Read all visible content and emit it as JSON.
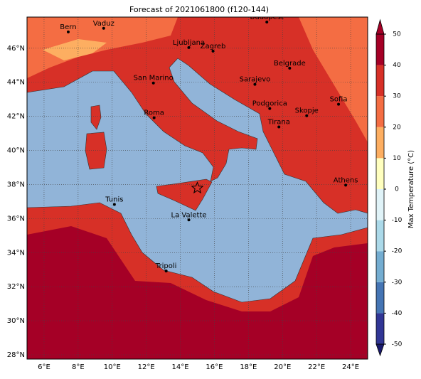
{
  "title": "Forecast of 2021061800 (f120-144)",
  "map": {
    "lonlim": [
      5,
      25
    ],
    "latlim": [
      27.75,
      47.83
    ],
    "grid": true,
    "lonticks": [
      {
        "value": 6,
        "label": "6°E"
      },
      {
        "value": 8,
        "label": "8°E"
      },
      {
        "value": 10,
        "label": "10°E"
      },
      {
        "value": 12,
        "label": "12°E"
      },
      {
        "value": 14,
        "label": "14°E"
      },
      {
        "value": 16,
        "label": "16°E"
      },
      {
        "value": 18,
        "label": "18°E"
      },
      {
        "value": 20,
        "label": "20°E"
      },
      {
        "value": 22,
        "label": "22°E"
      },
      {
        "value": 24,
        "label": "24°E"
      }
    ],
    "latticks": [
      {
        "value": 28,
        "label": "28°N"
      },
      {
        "value": 30,
        "label": "30°N"
      },
      {
        "value": 32,
        "label": "32°N"
      },
      {
        "value": 34,
        "label": "34°N"
      },
      {
        "value": 36,
        "label": "36°N"
      },
      {
        "value": 38,
        "label": "38°N"
      },
      {
        "value": 40,
        "label": "40°N"
      },
      {
        "value": 42,
        "label": "42°N"
      },
      {
        "value": 44,
        "label": "44°N"
      },
      {
        "value": 46,
        "label": "46°N"
      }
    ],
    "cities": [
      {
        "name": "Bern",
        "lon": 7.42,
        "lat": 46.96
      },
      {
        "name": "Vaduz",
        "lon": 9.5,
        "lat": 47.17
      },
      {
        "name": "Budapest",
        "lon": 19.08,
        "lat": 47.54
      },
      {
        "name": "Ljubljana",
        "lon": 14.5,
        "lat": 46.04
      },
      {
        "name": "Zagreb",
        "lon": 15.92,
        "lat": 45.83
      },
      {
        "name": "Belgrade",
        "lon": 20.42,
        "lat": 44.83
      },
      {
        "name": "San Marino",
        "lon": 12.42,
        "lat": 43.96
      },
      {
        "name": "Sarajevo",
        "lon": 18.38,
        "lat": 43.88
      },
      {
        "name": "Sofia",
        "lon": 23.29,
        "lat": 42.71
      },
      {
        "name": "Podgorica",
        "lon": 19.25,
        "lat": 42.46
      },
      {
        "name": "Skopje",
        "lon": 21.42,
        "lat": 42.04
      },
      {
        "name": "Roma",
        "lon": 12.46,
        "lat": 41.92
      },
      {
        "name": "Tirana",
        "lon": 19.79,
        "lat": 41.38
      },
      {
        "name": "Athens",
        "lon": 23.71,
        "lat": 37.96
      },
      {
        "name": "Tunis",
        "lon": 10.13,
        "lat": 36.83
      },
      {
        "name": "La Valette",
        "lon": 14.5,
        "lat": 35.92
      },
      {
        "name": "Tripoli",
        "lon": 13.17,
        "lat": 32.92
      }
    ],
    "star": {
      "lon": 15.0,
      "lat": 37.79
    }
  },
  "colorbar": {
    "label": "Max Temperature (°C)",
    "ticks": [
      -50,
      -40,
      -30,
      -20,
      -10,
      0,
      10,
      20,
      30,
      40,
      50
    ],
    "colors": [
      "#313695",
      "#4575b4",
      "#74add1",
      "#abd9e9",
      "#e0f3f8",
      "#ffffbf",
      "#fdae61",
      "#f46d43",
      "#d73027",
      "#a50026"
    ]
  }
}
